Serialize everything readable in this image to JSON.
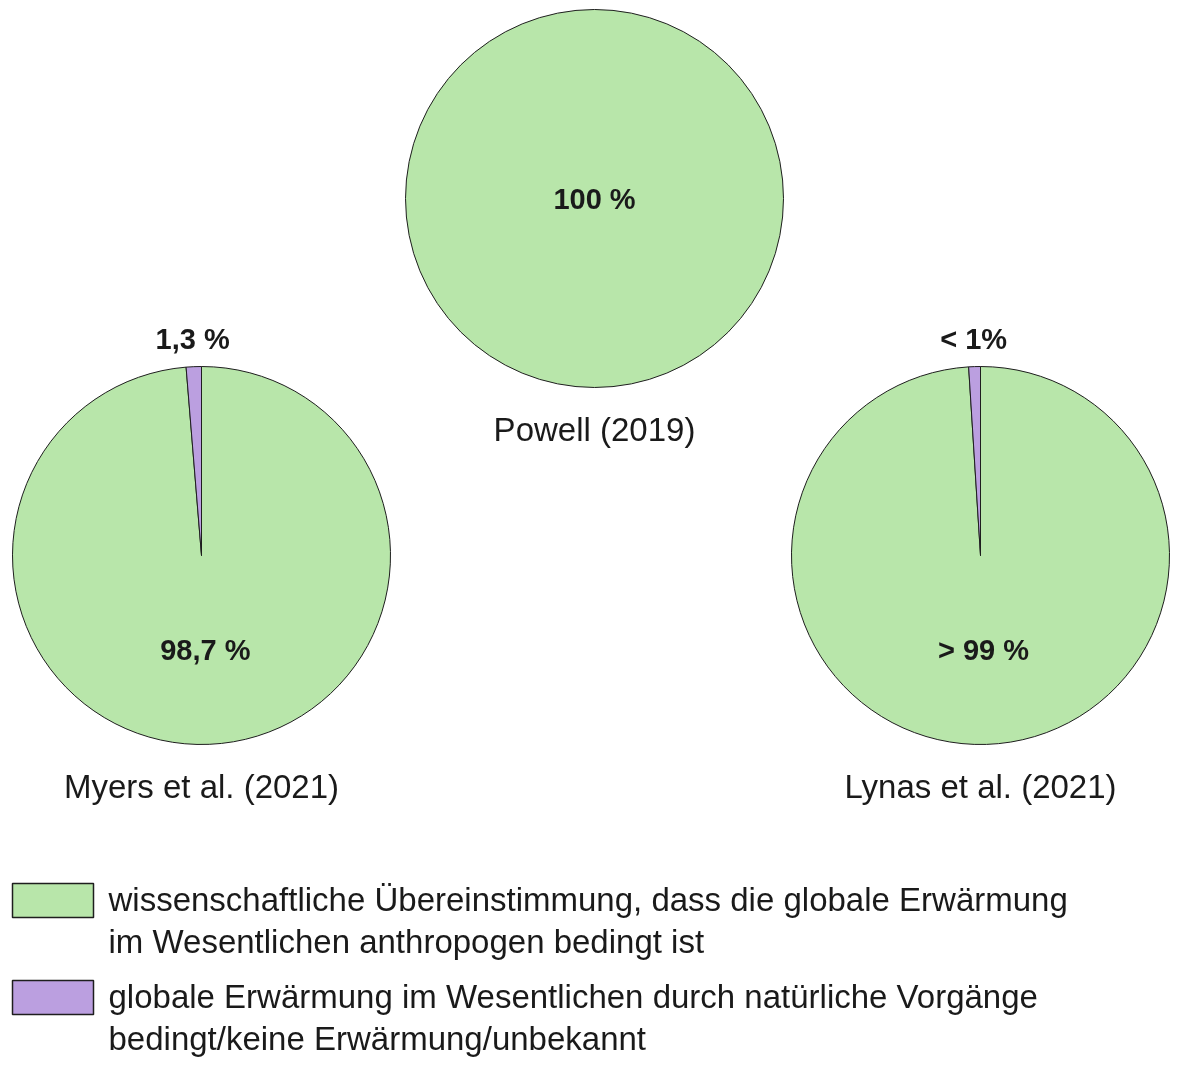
{
  "chart_data": [
    {
      "type": "pie",
      "title": "Powell (2019)",
      "values": [
        100
      ],
      "colors": [
        "#b8e6aa"
      ],
      "value_labels": [
        "100 %"
      ]
    },
    {
      "type": "pie",
      "title": "Myers et al. (2021)",
      "categories": [
        "wissenschaftliche Übereinstimmung, dass die globale Erwärmung im Wesentlichen anthropogen bedingt ist",
        "globale Erwärmung im Wesentlichen durch natürliche Vorgänge bedingt/keine Erwärmung/unbekannt"
      ],
      "values": [
        98.7,
        1.3
      ],
      "colors": [
        "#b8e6aa",
        "#bb9fe0"
      ],
      "value_labels": [
        "98,7 %",
        "1,3 %"
      ],
      "legend": "bottom"
    },
    {
      "type": "pie",
      "title": "Lynas et al. (2021)",
      "values": [
        99,
        1
      ],
      "colors": [
        "#b8e6aa",
        "#bb9fe0"
      ],
      "value_labels": [
        "> 99 %",
        "< 1%"
      ]
    }
  ]
}
